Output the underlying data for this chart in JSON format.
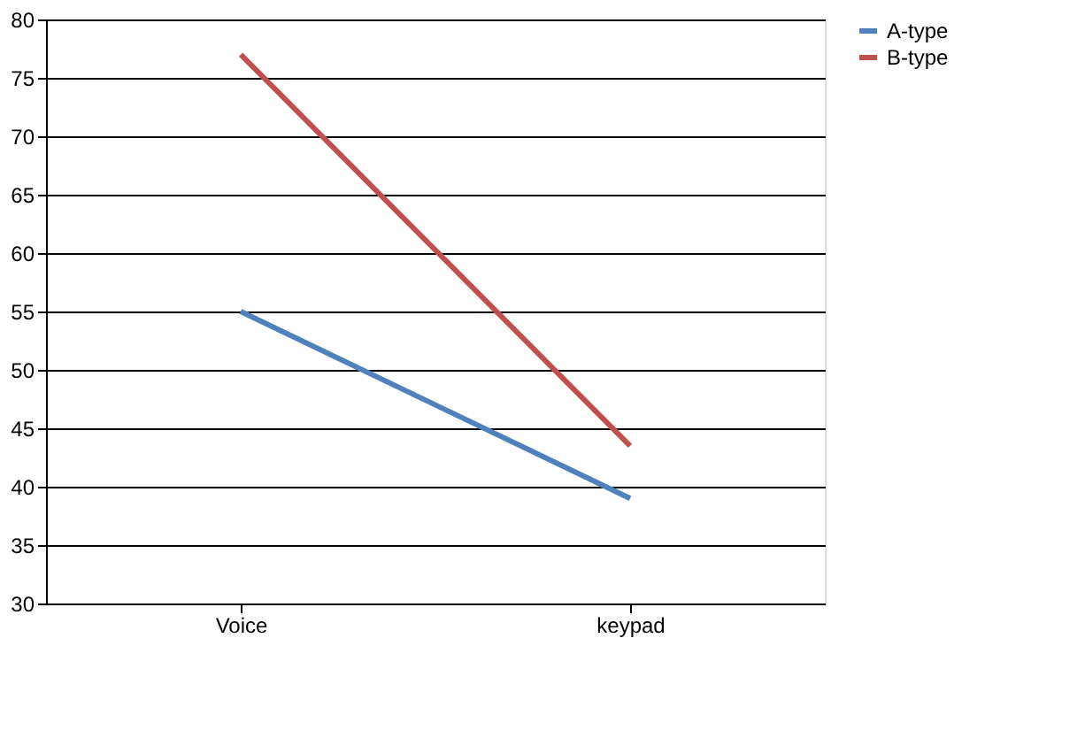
{
  "chart_data": {
    "type": "line",
    "categories": [
      "Voice",
      "keypad"
    ],
    "series": [
      {
        "name": "A-type",
        "color": "#4f81bd",
        "values": [
          55,
          39
        ]
      },
      {
        "name": "B-type",
        "color": "#c0504d",
        "values": [
          77,
          43.5
        ]
      }
    ],
    "ylim": [
      30,
      80
    ],
    "yticks": [
      30,
      35,
      40,
      45,
      50,
      55,
      60,
      65,
      70,
      75,
      80
    ],
    "grid": "y",
    "legend": "right",
    "marker": "none"
  }
}
